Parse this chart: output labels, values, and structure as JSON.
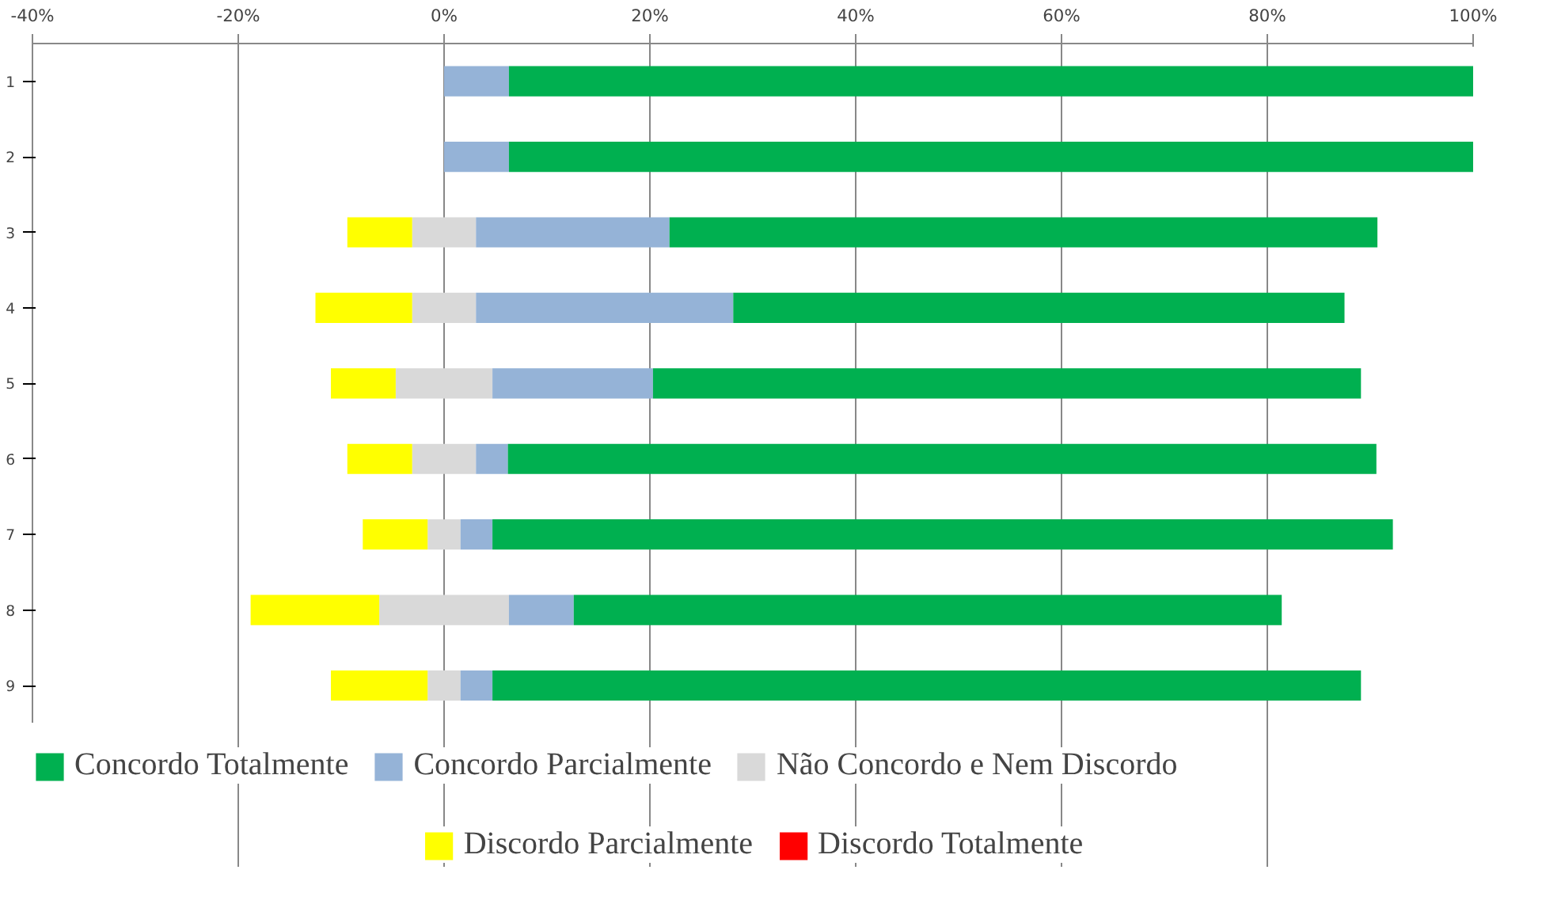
{
  "chart_data": {
    "type": "bar",
    "orientation": "horizontal",
    "stacked": true,
    "categories": [
      "1",
      "2",
      "3",
      "4",
      "5",
      "6",
      "7",
      "8",
      "9"
    ],
    "series": [
      {
        "color": "#d9d9d9",
        "values": [
          0,
          0,
          -3.1,
          -3.1,
          -4.7,
          -3.1,
          -1.6,
          -6.3,
          -1.6
        ]
      },
      {
        "name": "Não Concordo e Nem Discordo",
        "color": "#d9d9d9",
        "values": [
          0,
          0,
          3.1,
          3.1,
          4.7,
          3.1,
          1.6,
          6.3,
          1.6
        ]
      },
      {
        "name": "Concordo Parcialmente",
        "color": "#95b3d7",
        "values": [
          6.3,
          6.3,
          18.8,
          25,
          15.6,
          3.1,
          3.1,
          6.3,
          3.1
        ]
      },
      {
        "name": "Concordo Totalmente",
        "color": "#00b050",
        "values": [
          93.7,
          93.7,
          68.8,
          59.4,
          68.8,
          84.4,
          87.5,
          68.8,
          84.4
        ]
      },
      {
        "name": "Discordo Parcialmente",
        "color": "#ffff00",
        "values": [
          0,
          0,
          -6.3,
          -9.4,
          -6.3,
          -6.3,
          -6.3,
          -12.5,
          -9.4
        ]
      },
      {
        "name": "Discordo Totalmente",
        "color": "#ff0000",
        "values": [
          0,
          0,
          0,
          0,
          0,
          0,
          0,
          0,
          0
        ]
      }
    ],
    "xlim": [
      -40,
      100
    ],
    "xticks": [
      {
        "value": -40,
        "label": "-40%"
      },
      {
        "value": -20,
        "label": "-20%"
      },
      {
        "value": 0,
        "label": "0%"
      },
      {
        "value": 20,
        "label": "20%"
      },
      {
        "value": 40,
        "label": "40%"
      },
      {
        "value": 60,
        "label": "60%"
      },
      {
        "value": 80,
        "label": "80%"
      },
      {
        "value": 100,
        "label": "100%"
      }
    ],
    "grid": "x",
    "legend": "bottom"
  }
}
